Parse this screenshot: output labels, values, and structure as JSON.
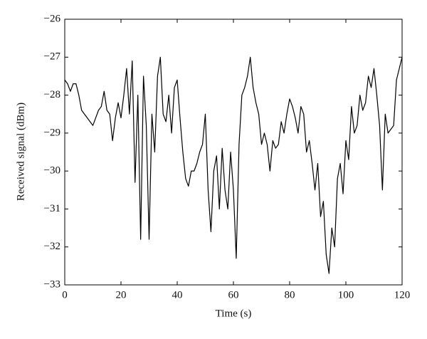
{
  "chart_data": {
    "type": "line",
    "xlabel": "Time (s)",
    "ylabel": "Received signal (dBm)",
    "x": [
      0,
      1,
      2,
      3,
      4,
      5,
      6,
      7,
      8,
      9,
      10,
      11,
      12,
      13,
      14,
      15,
      16,
      17,
      18,
      19,
      20,
      21,
      22,
      23,
      24,
      25,
      26,
      27,
      28,
      29,
      30,
      31,
      32,
      33,
      34,
      35,
      36,
      37,
      38,
      39,
      40,
      41,
      42,
      43,
      44,
      45,
      46,
      47,
      48,
      49,
      50,
      51,
      52,
      53,
      54,
      55,
      56,
      57,
      58,
      59,
      60,
      61,
      62,
      63,
      64,
      65,
      66,
      67,
      68,
      69,
      70,
      71,
      72,
      73,
      74,
      75,
      76,
      77,
      78,
      79,
      80,
      81,
      82,
      83,
      84,
      85,
      86,
      87,
      88,
      89,
      90,
      91,
      92,
      93,
      94,
      95,
      96,
      97,
      98,
      99,
      100,
      101,
      102,
      103,
      104,
      105,
      106,
      107,
      108,
      109,
      110,
      111,
      112,
      113,
      114,
      115,
      116,
      117,
      118,
      119,
      120
    ],
    "series": [
      {
        "color": "#000000",
        "values": [
          -27.6,
          -27.7,
          -27.9,
          -27.7,
          -27.7,
          -28.0,
          -28.4,
          -28.5,
          -28.6,
          -28.7,
          -28.8,
          -28.6,
          -28.4,
          -28.3,
          -27.9,
          -28.4,
          -28.5,
          -29.2,
          -28.6,
          -28.2,
          -28.6,
          -28.0,
          -27.3,
          -28.5,
          -27.1,
          -30.3,
          -28.0,
          -31.8,
          -27.5,
          -28.8,
          -31.8,
          -28.5,
          -29.5,
          -27.5,
          -27.0,
          -28.5,
          -28.7,
          -28.0,
          -29.0,
          -27.8,
          -27.6,
          -28.6,
          -29.5,
          -30.2,
          -30.4,
          -30.0,
          -30.0,
          -29.8,
          -29.5,
          -29.3,
          -28.5,
          -30.5,
          -31.6,
          -30.0,
          -29.6,
          -31.0,
          -29.4,
          -30.5,
          -31.0,
          -29.5,
          -30.5,
          -32.3,
          -29.3,
          -28.0,
          -27.8,
          -27.5,
          -27.0,
          -27.8,
          -28.2,
          -28.5,
          -29.3,
          -29.0,
          -29.3,
          -30.0,
          -29.2,
          -29.4,
          -29.3,
          -28.7,
          -29.0,
          -28.5,
          -28.1,
          -28.3,
          -28.6,
          -29.0,
          -28.3,
          -28.5,
          -29.5,
          -29.2,
          -29.8,
          -30.5,
          -29.8,
          -31.2,
          -30.8,
          -32.2,
          -32.7,
          -31.5,
          -32.0,
          -30.2,
          -29.8,
          -30.6,
          -29.2,
          -29.7,
          -28.3,
          -29.0,
          -28.8,
          -28.0,
          -28.4,
          -28.2,
          -27.5,
          -27.8,
          -27.3,
          -28.0,
          -28.8,
          -30.5,
          -28.5,
          -29.0,
          -28.9,
          -28.8,
          -27.6,
          -27.3,
          -27.0
        ]
      }
    ],
    "xlim": [
      0,
      120
    ],
    "xticks": [
      0,
      20,
      40,
      60,
      80,
      100,
      120
    ],
    "ylim": [
      -33,
      -26
    ],
    "yticks": [
      {
        "value": -33,
        "label": "−33"
      },
      {
        "value": -32,
        "label": "−32"
      },
      {
        "value": -31,
        "label": "−31"
      },
      {
        "value": -30,
        "label": "−30"
      },
      {
        "value": -29,
        "label": "−29"
      },
      {
        "value": -28,
        "label": "−28"
      },
      {
        "value": -27,
        "label": "−27"
      },
      {
        "value": -26,
        "label": "−26"
      }
    ],
    "grid": false
  }
}
